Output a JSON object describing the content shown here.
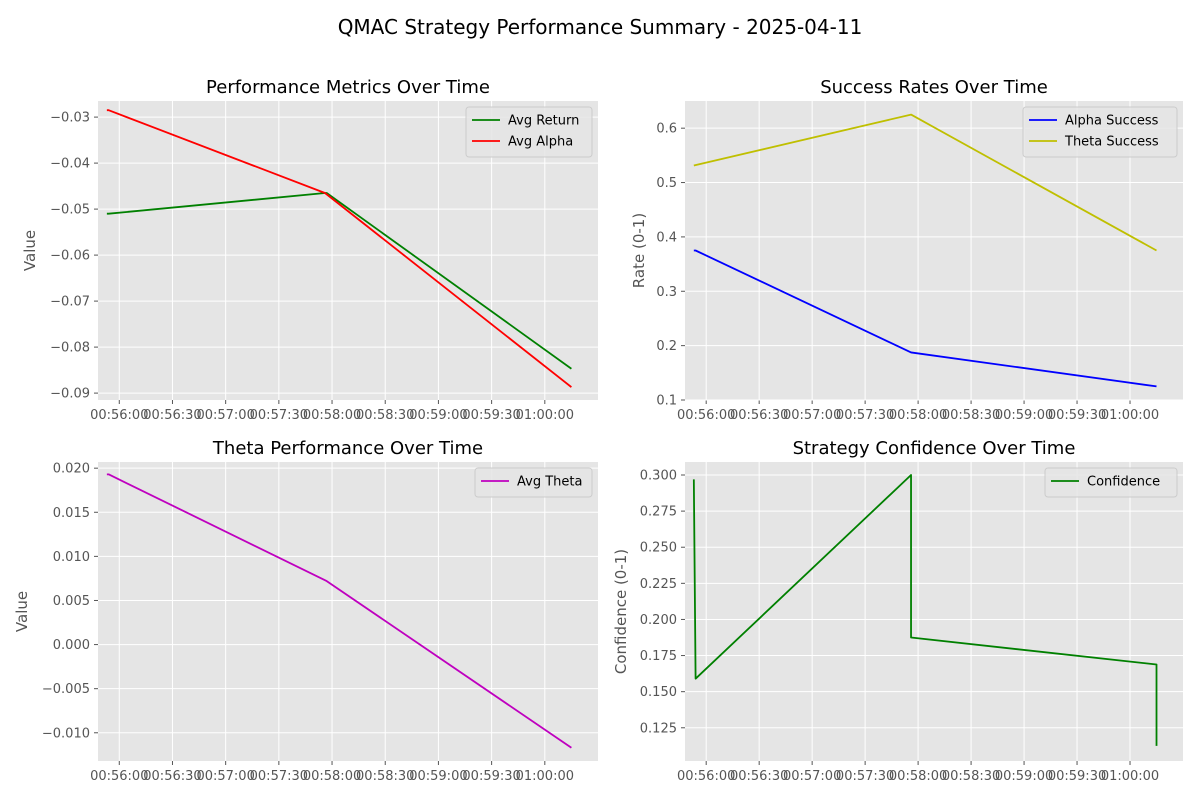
{
  "figure_title": "QMAC Strategy Performance Summary - 2025-04-11",
  "colors": {
    "background": "#e5e5e5",
    "grid": "#ffffff",
    "green": "#008000",
    "red": "#ff0000",
    "blue": "#0000ff",
    "olive": "#bfbf00",
    "magenta": "#bf00bf"
  },
  "chart_data": [
    {
      "type": "line",
      "title": "Performance Metrics Over Time",
      "xlabel": "",
      "ylabel": "Value",
      "x_ticks": [
        "00:56:00",
        "00:56:30",
        "00:57:00",
        "00:57:30",
        "00:58:00",
        "00:58:30",
        "00:59:00",
        "00:59:30",
        "01:00:00"
      ],
      "y_ticks": [
        "−0.03",
        "−0.04",
        "−0.05",
        "−0.06",
        "−0.07",
        "−0.08",
        "−0.09"
      ],
      "xlim": [
        "00:55:48",
        "01:00:30"
      ],
      "ylim": [
        -0.0915,
        -0.0265
      ],
      "grid": true,
      "legend": "top-right",
      "series": [
        {
          "name": "Avg Return",
          "color": "#008000",
          "x": [
            "00:55:53",
            "00:55:54",
            "00:57:56",
            "00:57:57",
            "01:00:15"
          ],
          "y": [
            -0.051,
            -0.051,
            -0.0465,
            -0.0465,
            -0.0847
          ]
        },
        {
          "name": "Avg Alpha",
          "color": "#ff0000",
          "x": [
            "00:55:53",
            "00:55:54",
            "00:57:56",
            "00:57:57",
            "01:00:15"
          ],
          "y": [
            -0.0285,
            -0.0285,
            -0.0465,
            -0.0468,
            -0.0887
          ]
        }
      ]
    },
    {
      "type": "line",
      "title": "Success Rates Over Time",
      "xlabel": "",
      "ylabel": "Rate (0-1)",
      "x_ticks": [
        "00:56:00",
        "00:56:30",
        "00:57:00",
        "00:57:30",
        "00:58:00",
        "00:58:30",
        "00:59:00",
        "00:59:30",
        "01:00:00"
      ],
      "y_ticks": [
        "0.6",
        "0.5",
        "0.4",
        "0.3",
        "0.2",
        "0.1"
      ],
      "xlim": [
        "00:55:48",
        "01:00:30"
      ],
      "ylim": [
        0.1,
        0.65
      ],
      "grid": true,
      "legend": "top-right",
      "series": [
        {
          "name": "Alpha Success",
          "color": "#0000ff",
          "x": [
            "00:55:53",
            "00:55:54",
            "00:57:56",
            "01:00:15"
          ],
          "y": [
            0.375,
            0.375,
            0.1875,
            0.125
          ]
        },
        {
          "name": "Theta Success",
          "color": "#bfbf00",
          "x": [
            "00:55:53",
            "00:57:56",
            "01:00:15"
          ],
          "y": [
            0.5313,
            0.625,
            0.375
          ]
        }
      ]
    },
    {
      "type": "line",
      "title": "Theta Performance Over Time",
      "xlabel": "",
      "ylabel": "Value",
      "x_ticks": [
        "00:56:00",
        "00:56:30",
        "00:57:00",
        "00:57:30",
        "00:58:00",
        "00:58:30",
        "00:59:00",
        "00:59:30",
        "01:00:00"
      ],
      "y_ticks": [
        "0.020",
        "0.015",
        "0.010",
        "0.005",
        "0.000",
        "−0.005",
        "−0.010"
      ],
      "xlim": [
        "00:55:48",
        "01:00:30"
      ],
      "ylim": [
        -0.0132,
        0.0207
      ],
      "grid": true,
      "legend": "top-right",
      "series": [
        {
          "name": "Avg Theta",
          "color": "#bf00bf",
          "x": [
            "00:55:53",
            "00:55:54",
            "00:57:56",
            "00:57:57",
            "01:00:15"
          ],
          "y": [
            0.0193,
            0.0193,
            0.0073,
            0.0072,
            -0.0117
          ]
        }
      ]
    },
    {
      "type": "line",
      "title": "Strategy Confidence Over Time",
      "xlabel": "",
      "ylabel": "Confidence (0-1)",
      "x_ticks": [
        "00:56:00",
        "00:56:30",
        "00:57:00",
        "00:57:30",
        "00:58:00",
        "00:58:30",
        "00:59:00",
        "00:59:30",
        "01:00:00"
      ],
      "y_ticks": [
        "0.300",
        "0.275",
        "0.250",
        "0.225",
        "0.200",
        "0.175",
        "0.150",
        "0.125"
      ],
      "xlim": [
        "00:55:48",
        "01:00:30"
      ],
      "ylim": [
        0.102,
        0.309
      ],
      "grid": true,
      "legend": "top-right",
      "series": [
        {
          "name": "Confidence",
          "color": "#008000",
          "x": [
            "00:55:53",
            "00:55:54",
            "00:57:56",
            "00:57:56",
            "01:00:15",
            "01:00:15"
          ],
          "y": [
            0.297,
            0.159,
            0.3,
            0.1875,
            0.1688,
            0.1125
          ]
        }
      ]
    }
  ]
}
